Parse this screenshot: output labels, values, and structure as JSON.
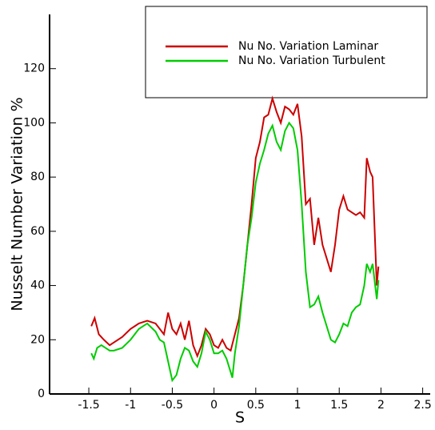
{
  "chart_data": {
    "type": "line",
    "xlabel": "S",
    "ylabel": "Nusselt Number Variation %",
    "xlim": [
      -1.97,
      2.59
    ],
    "ylim": [
      0,
      140
    ],
    "xticks": [
      -1.5,
      -1,
      -0.5,
      0,
      0.5,
      1,
      1.5,
      2,
      2.5
    ],
    "yticks": [
      0,
      20,
      40,
      60,
      80,
      100,
      120
    ],
    "legend": "upper-right",
    "series": [
      {
        "name": "Nu No. Variation Laminar",
        "color": "#cc0000",
        "x": [
          -1.47,
          -1.43,
          -1.38,
          -1.32,
          -1.25,
          -1.2,
          -1.1,
          -1.0,
          -0.95,
          -0.9,
          -0.8,
          -0.7,
          -0.65,
          -0.6,
          -0.55,
          -0.5,
          -0.45,
          -0.4,
          -0.35,
          -0.3,
          -0.25,
          -0.2,
          -0.15,
          -0.1,
          -0.05,
          0,
          0.05,
          0.1,
          0.15,
          0.2,
          0.25,
          0.3,
          0.35,
          0.4,
          0.45,
          0.5,
          0.55,
          0.6,
          0.65,
          0.7,
          0.75,
          0.8,
          0.85,
          0.9,
          0.95,
          1.0,
          1.05,
          1.1,
          1.15,
          1.2,
          1.25,
          1.3,
          1.35,
          1.4,
          1.45,
          1.5,
          1.55,
          1.6,
          1.7,
          1.75,
          1.8,
          1.83,
          1.87,
          1.9,
          1.95,
          1.97
        ],
        "values": [
          25,
          28,
          22,
          20,
          18,
          19,
          21,
          24,
          25,
          26,
          27,
          26,
          24,
          22,
          30,
          24,
          22,
          26,
          20,
          27,
          18,
          14,
          18,
          24,
          22,
          18,
          17,
          20,
          17,
          16,
          22,
          28,
          40,
          55,
          70,
          87,
          93,
          102,
          103,
          109,
          104,
          100,
          106,
          105,
          103,
          107,
          95,
          70,
          72,
          55,
          65,
          55,
          50,
          45,
          55,
          68,
          73,
          68,
          66,
          67,
          65,
          87,
          82,
          80,
          40,
          47
        ]
      },
      {
        "name": "Nu No. Variation  Turbulent",
        "color": "#00cc00",
        "x": [
          -1.47,
          -1.44,
          -1.4,
          -1.35,
          -1.3,
          -1.25,
          -1.2,
          -1.1,
          -1.0,
          -0.9,
          -0.8,
          -0.7,
          -0.65,
          -0.6,
          -0.55,
          -0.5,
          -0.45,
          -0.4,
          -0.35,
          -0.3,
          -0.25,
          -0.2,
          -0.15,
          -0.1,
          -0.05,
          0,
          0.05,
          0.1,
          0.15,
          0.2,
          0.22,
          0.25,
          0.3,
          0.35,
          0.4,
          0.45,
          0.5,
          0.55,
          0.6,
          0.65,
          0.7,
          0.75,
          0.8,
          0.85,
          0.9,
          0.95,
          1.0,
          1.05,
          1.1,
          1.15,
          1.2,
          1.25,
          1.3,
          1.35,
          1.4,
          1.45,
          1.5,
          1.55,
          1.6,
          1.65,
          1.7,
          1.75,
          1.8,
          1.83,
          1.87,
          1.9,
          1.95,
          1.97
        ],
        "values": [
          15,
          13,
          17,
          18,
          17,
          16,
          16,
          17,
          20,
          24,
          26,
          23,
          20,
          19,
          12,
          5,
          7,
          13,
          17,
          16,
          12,
          10,
          15,
          23,
          20,
          15,
          15,
          16,
          13,
          8,
          6,
          15,
          25,
          40,
          55,
          65,
          78,
          85,
          90,
          96,
          99,
          93,
          90,
          97,
          100,
          98,
          90,
          70,
          45,
          32,
          33,
          36,
          30,
          25,
          20,
          19,
          22,
          26,
          25,
          30,
          32,
          33,
          40,
          48,
          45,
          48,
          35,
          42
        ]
      }
    ]
  }
}
